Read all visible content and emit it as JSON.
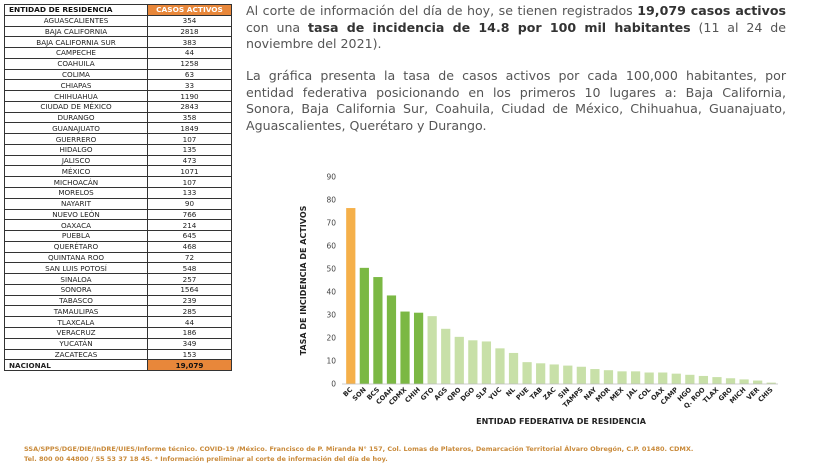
{
  "table": {
    "header_name": "ENTIDAD DE RESIDENCIA",
    "header_value": "CASOS ACTIVOS",
    "rows": [
      {
        "name": "AGUASCALIENTES",
        "value": "354"
      },
      {
        "name": "BAJA CALIFORNIA",
        "value": "2818"
      },
      {
        "name": "BAJA CALIFORNIA SUR",
        "value": "383"
      },
      {
        "name": "CAMPECHE",
        "value": "44"
      },
      {
        "name": "COAHUILA",
        "value": "1258"
      },
      {
        "name": "COLIMA",
        "value": "63"
      },
      {
        "name": "CHIAPAS",
        "value": "33"
      },
      {
        "name": "CHIHUAHUA",
        "value": "1190"
      },
      {
        "name": "CIUDAD DE MÉXICO",
        "value": "2843"
      },
      {
        "name": "DURANGO",
        "value": "358"
      },
      {
        "name": "GUANAJUATO",
        "value": "1849"
      },
      {
        "name": "GUERRERO",
        "value": "107"
      },
      {
        "name": "HIDALGO",
        "value": "135"
      },
      {
        "name": "JALISCO",
        "value": "473"
      },
      {
        "name": "MÉXICO",
        "value": "1071"
      },
      {
        "name": "MICHOACÁN",
        "value": "107"
      },
      {
        "name": "MORELOS",
        "value": "133"
      },
      {
        "name": "NAYARIT",
        "value": "90"
      },
      {
        "name": "NUEVO LEÓN",
        "value": "766"
      },
      {
        "name": "OAXACA",
        "value": "214"
      },
      {
        "name": "PUEBLA",
        "value": "645"
      },
      {
        "name": "QUERÉTARO",
        "value": "468"
      },
      {
        "name": "QUINTANA ROO",
        "value": "72"
      },
      {
        "name": "SAN LUIS POTOSÍ",
        "value": "548"
      },
      {
        "name": "SINALOA",
        "value": "257"
      },
      {
        "name": "SONORA",
        "value": "1564"
      },
      {
        "name": "TABASCO",
        "value": "239"
      },
      {
        "name": "TAMAULIPAS",
        "value": "285"
      },
      {
        "name": "TLAXCALA",
        "value": "44"
      },
      {
        "name": "VERACRUZ",
        "value": "186"
      },
      {
        "name": "YUCATÁN",
        "value": "349"
      },
      {
        "name": "ZACATECAS",
        "value": "153"
      }
    ],
    "total_label": "NACIONAL",
    "total_value": "19,079"
  },
  "paragraph1": {
    "t1": "Al corte de información del día de hoy, se tienen registrados ",
    "b1": "19,079 casos activos",
    "t2": " con una ",
    "b2": "tasa de incidencia de 14.8 por 100 mil habitantes",
    "t3": " (11 al 24 de noviembre del 2021)."
  },
  "paragraph2": "La gráfica presenta la tasa de casos activos por cada 100,000 habitantes, por entidad federativa posicionando en los primeros 10 lugares a: Baja California, Sonora, Baja California Sur, Coahuila, Ciudad de México, Chihuahua, Guanajuato, Aguascalientes, Querétaro y Durango.",
  "footer": {
    "line1": "SSA/SPPS/DGE/DIE/InDRE/UIES/Informe técnico. COVID-19 /México. Francisco de P. Miranda N° 157, Col. Lomas de Plateros, Demarcación Territorial Álvaro Obregón, C.P. 01480. CDMX.",
    "line2": "Tel. 800 00 44800 / 55 53 37 18 45. * Información preliminar al corte de información del día de hoy."
  },
  "colors": {
    "accent_orange": "#e8873a",
    "bar_first": "#f5b04a",
    "bar_top10": "#7bb844",
    "bar_rest": "#c8e0a8",
    "footer_text": "#c98a3a"
  },
  "chart_data": {
    "type": "bar",
    "title": "",
    "xlabel": "ENTIDAD FEDERATIVA DE RESIDENCIA",
    "ylabel": "TASA DE INCIDENCIA DE ACTIVOS",
    "ylim": [
      0,
      90
    ],
    "yticks": [
      0,
      10,
      20,
      30,
      40,
      50,
      60,
      70,
      80,
      90
    ],
    "grid": false,
    "categories": [
      "BC",
      "SON",
      "BCS",
      "COAH",
      "CDMX",
      "CHIH",
      "GTO",
      "AGS",
      "QRO",
      "DGO",
      "SLP",
      "YUC",
      "NL",
      "PUE",
      "TAB",
      "ZAC",
      "SIN",
      "TAMPS",
      "NAY",
      "MOR",
      "MEX",
      "JAL",
      "COL",
      "OAX",
      "CAMP",
      "HGO",
      "Q. ROO",
      "TLAX",
      "GRO",
      "MICH",
      "VER",
      "CHIS"
    ],
    "values": [
      76.5,
      50.5,
      46.5,
      38.5,
      31.5,
      31.0,
      29.5,
      24.0,
      20.5,
      19.0,
      18.5,
      15.5,
      13.5,
      9.5,
      9.0,
      8.5,
      8.0,
      7.5,
      6.5,
      6.0,
      5.5,
      5.5,
      5.0,
      5.0,
      4.5,
      4.0,
      3.5,
      3.0,
      2.5,
      2.0,
      1.5,
      0.6
    ],
    "highlight_groups": {
      "first": 1,
      "top10_green": 5
    }
  }
}
